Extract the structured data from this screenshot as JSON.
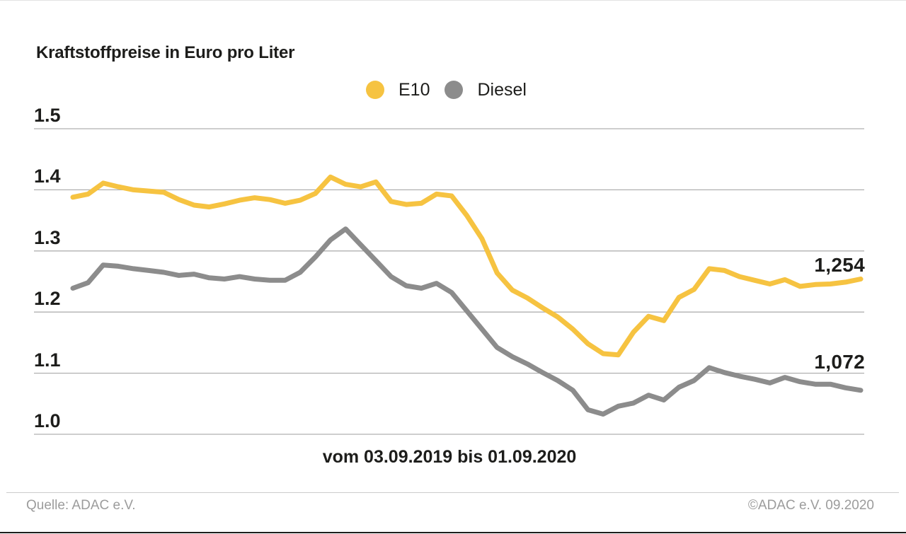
{
  "title": "Kraftstoffpreise in Euro pro Liter",
  "y_axis": {
    "tick_labels": [
      "1.5",
      "1.4",
      "1.3",
      "1.2",
      "1.1",
      "1.0"
    ]
  },
  "x_axis": {
    "label": "vom 03.09.2019 bis 01.09.2020"
  },
  "footer": {
    "source": "Quelle: ADAC e.V.",
    "copyright": "©ADAC e.V. 09.2020"
  },
  "colors": {
    "e10": "#F6C341",
    "diesel": "#8C8C8C",
    "gridline": "#B0B0B0",
    "text": "#1D1D1B",
    "footer_text": "#9C9C9C"
  },
  "chart_data": {
    "type": "line",
    "title": "Kraftstoffpreise in Euro pro Liter",
    "xlabel": "vom 03.09.2019 bis 01.09.2020",
    "ylabel": "Euro pro Liter",
    "ylim": [
      1.0,
      1.5
    ],
    "yticks": [
      1.0,
      1.1,
      1.2,
      1.3,
      1.4,
      1.5
    ],
    "grid": "horizontal",
    "legend_position": "top-center",
    "x_description": "wöchentliche Werte vom 03.09.2019 bis 01.09.2020",
    "series": [
      {
        "name": "E10",
        "color": "#F6C341",
        "end_label": "1,254",
        "end_value": 1.254,
        "values": [
          1.388,
          1.393,
          1.411,
          1.405,
          1.4,
          1.398,
          1.396,
          1.384,
          1.375,
          1.372,
          1.377,
          1.383,
          1.387,
          1.384,
          1.378,
          1.383,
          1.394,
          1.421,
          1.409,
          1.405,
          1.413,
          1.381,
          1.376,
          1.378,
          1.393,
          1.39,
          1.358,
          1.32,
          1.264,
          1.236,
          1.223,
          1.207,
          1.192,
          1.172,
          1.148,
          1.132,
          1.13,
          1.167,
          1.193,
          1.186,
          1.224,
          1.237,
          1.271,
          1.268,
          1.258,
          1.252,
          1.246,
          1.253,
          1.242,
          1.245,
          1.246,
          1.249,
          1.254
        ]
      },
      {
        "name": "Diesel",
        "color": "#8C8C8C",
        "end_label": "1,072",
        "end_value": 1.072,
        "values": [
          1.239,
          1.248,
          1.277,
          1.275,
          1.271,
          1.268,
          1.265,
          1.26,
          1.262,
          1.256,
          1.254,
          1.258,
          1.254,
          1.252,
          1.252,
          1.265,
          1.29,
          1.318,
          1.336,
          1.31,
          1.284,
          1.258,
          1.243,
          1.239,
          1.247,
          1.232,
          1.202,
          1.172,
          1.142,
          1.127,
          1.115,
          1.101,
          1.088,
          1.072,
          1.04,
          1.033,
          1.046,
          1.051,
          1.064,
          1.056,
          1.077,
          1.088,
          1.109,
          1.101,
          1.095,
          1.09,
          1.084,
          1.093,
          1.086,
          1.082,
          1.082,
          1.076,
          1.072
        ]
      }
    ]
  }
}
